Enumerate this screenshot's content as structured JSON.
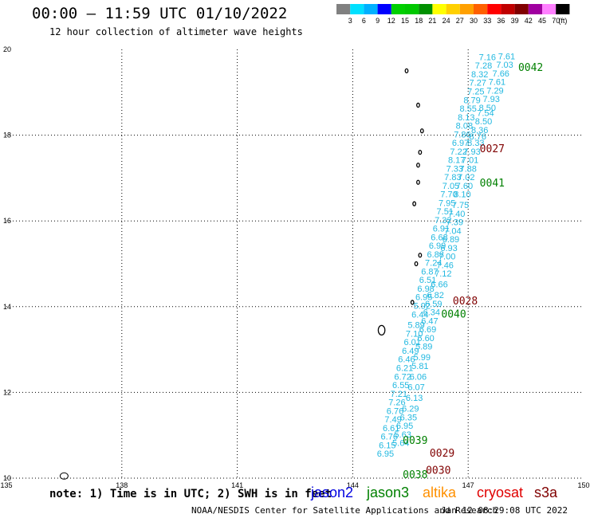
{
  "title": "00:00 – 11:59 UTC 01/10/2022",
  "subtitle": "12 hour collection of altimeter wave heights",
  "colorbar": {
    "labels": [
      "3",
      "6",
      "9",
      "12",
      "15",
      "18",
      "21",
      "24",
      "27",
      "30",
      "33",
      "36",
      "39",
      "42",
      "45",
      "70"
    ],
    "unit": "(ft)",
    "colors": [
      "#808080",
      "#00e0ff",
      "#00b0ff",
      "#0000ff",
      "#00d000",
      "#00c800",
      "#009000",
      "#ffff00",
      "#ffd000",
      "#ffa000",
      "#ff6000",
      "#ff0000",
      "#c00000",
      "#800000",
      "#a000a0",
      "#ff80ff",
      "#000000"
    ]
  },
  "footer_note": "note: 1) Time is in UTC; 2) SWH is in feet",
  "legend": [
    {
      "label": "jason2",
      "color": "#0000e0"
    },
    {
      "label": "jason3",
      "color": "#008000"
    },
    {
      "label": "altika",
      "color": "#ff9000"
    },
    {
      "label": "cryosat",
      "color": "#e00000"
    },
    {
      "label": "s3a",
      "color": "#800000"
    }
  ],
  "credit": "NOAA/NESDIS Center for Satellite Applications and Research",
  "credit_time": "Jan 12 08:29:08 UTC 2022",
  "chart_data": {
    "type": "scatter",
    "xlim": [
      135,
      150
    ],
    "ylim": [
      10,
      20
    ],
    "x_ticks": [
      "135",
      "138",
      "141",
      "144",
      "147",
      "150"
    ],
    "y_ticks": [
      "10",
      "12",
      "14",
      "16",
      "18",
      "20"
    ],
    "grid": true,
    "wave_heights": [
      {
        "lon": 147.5,
        "lat": 19.75,
        "v": "7.16"
      },
      {
        "lon": 148.0,
        "lat": 19.77,
        "v": "7.61"
      },
      {
        "lon": 147.4,
        "lat": 19.55,
        "v": "7.28"
      },
      {
        "lon": 147.95,
        "lat": 19.57,
        "v": "7.03"
      },
      {
        "lon": 147.3,
        "lat": 19.35,
        "v": "8.32"
      },
      {
        "lon": 147.85,
        "lat": 19.37,
        "v": "7.66"
      },
      {
        "lon": 147.25,
        "lat": 19.15,
        "v": "7.27"
      },
      {
        "lon": 147.75,
        "lat": 19.17,
        "v": "7.61"
      },
      {
        "lon": 147.2,
        "lat": 18.95,
        "v": "7.25"
      },
      {
        "lon": 147.7,
        "lat": 18.97,
        "v": "7.29"
      },
      {
        "lon": 147.1,
        "lat": 18.75,
        "v": "8.79"
      },
      {
        "lon": 147.6,
        "lat": 18.77,
        "v": "7.93"
      },
      {
        "lon": 147.0,
        "lat": 18.55,
        "v": "8.55"
      },
      {
        "lon": 147.5,
        "lat": 18.57,
        "v": "8.50"
      },
      {
        "lon": 146.95,
        "lat": 18.35,
        "v": "8.13"
      },
      {
        "lon": 147.45,
        "lat": 18.45,
        "v": "7.54"
      },
      {
        "lon": 146.9,
        "lat": 18.15,
        "v": "8.08"
      },
      {
        "lon": 147.4,
        "lat": 18.25,
        "v": "8.50"
      },
      {
        "lon": 146.85,
        "lat": 17.95,
        "v": "7.86"
      },
      {
        "lon": 147.3,
        "lat": 18.05,
        "v": "8.36"
      },
      {
        "lon": 146.8,
        "lat": 17.75,
        "v": "6.97"
      },
      {
        "lon": 147.25,
        "lat": 17.9,
        "v": "8.76"
      },
      {
        "lon": 146.75,
        "lat": 17.55,
        "v": "7.22"
      },
      {
        "lon": 147.2,
        "lat": 17.75,
        "v": "8.33"
      },
      {
        "lon": 146.7,
        "lat": 17.35,
        "v": "8.17"
      },
      {
        "lon": 147.1,
        "lat": 17.55,
        "v": "7.93"
      },
      {
        "lon": 146.65,
        "lat": 17.15,
        "v": "7.33"
      },
      {
        "lon": 147.05,
        "lat": 17.35,
        "v": "7.01"
      },
      {
        "lon": 146.6,
        "lat": 16.95,
        "v": "7.83"
      },
      {
        "lon": 147.0,
        "lat": 17.15,
        "v": "7.88"
      },
      {
        "lon": 146.55,
        "lat": 16.75,
        "v": "7.05"
      },
      {
        "lon": 146.95,
        "lat": 16.95,
        "v": "7.02"
      },
      {
        "lon": 146.5,
        "lat": 16.55,
        "v": "7.70"
      },
      {
        "lon": 146.9,
        "lat": 16.75,
        "v": "7.60"
      },
      {
        "lon": 146.45,
        "lat": 16.35,
        "v": "7.95"
      },
      {
        "lon": 146.85,
        "lat": 16.55,
        "v": "8.10"
      },
      {
        "lon": 146.4,
        "lat": 16.15,
        "v": "7.51"
      },
      {
        "lon": 146.8,
        "lat": 16.3,
        "v": "7.75"
      },
      {
        "lon": 146.35,
        "lat": 15.95,
        "v": "7.32"
      },
      {
        "lon": 146.7,
        "lat": 16.1,
        "v": "7.40"
      },
      {
        "lon": 146.3,
        "lat": 15.75,
        "v": "6.91"
      },
      {
        "lon": 146.65,
        "lat": 15.9,
        "v": "7.39"
      },
      {
        "lon": 146.25,
        "lat": 15.55,
        "v": "6.68"
      },
      {
        "lon": 146.6,
        "lat": 15.7,
        "v": "7.04"
      },
      {
        "lon": 146.2,
        "lat": 15.35,
        "v": "6.99"
      },
      {
        "lon": 146.55,
        "lat": 15.5,
        "v": "6.89"
      },
      {
        "lon": 146.15,
        "lat": 15.15,
        "v": "6.88"
      },
      {
        "lon": 146.5,
        "lat": 15.3,
        "v": "6.93"
      },
      {
        "lon": 146.1,
        "lat": 14.95,
        "v": "7.24"
      },
      {
        "lon": 146.45,
        "lat": 15.1,
        "v": "7.00"
      },
      {
        "lon": 146.0,
        "lat": 14.75,
        "v": "6.87"
      },
      {
        "lon": 146.4,
        "lat": 14.9,
        "v": "7.46"
      },
      {
        "lon": 145.95,
        "lat": 14.55,
        "v": "6.51"
      },
      {
        "lon": 146.35,
        "lat": 14.7,
        "v": "7.12"
      },
      {
        "lon": 145.9,
        "lat": 14.35,
        "v": "6.98"
      },
      {
        "lon": 146.25,
        "lat": 14.45,
        "v": "6.66"
      },
      {
        "lon": 145.85,
        "lat": 14.15,
        "v": "6.95"
      },
      {
        "lon": 146.15,
        "lat": 14.2,
        "v": "6.82"
      },
      {
        "lon": 145.8,
        "lat": 13.95,
        "v": "5.92"
      },
      {
        "lon": 146.1,
        "lat": 14.0,
        "v": "6.59"
      },
      {
        "lon": 145.75,
        "lat": 13.75,
        "v": "6.44"
      },
      {
        "lon": 146.05,
        "lat": 13.8,
        "v": "6.34"
      },
      {
        "lon": 145.65,
        "lat": 13.5,
        "v": "5.89"
      },
      {
        "lon": 146.0,
        "lat": 13.6,
        "v": "6.47"
      },
      {
        "lon": 145.6,
        "lat": 13.3,
        "v": "7.10"
      },
      {
        "lon": 145.95,
        "lat": 13.4,
        "v": "6.69"
      },
      {
        "lon": 145.55,
        "lat": 13.1,
        "v": "6.01"
      },
      {
        "lon": 145.9,
        "lat": 13.2,
        "v": "6.60"
      },
      {
        "lon": 145.5,
        "lat": 12.9,
        "v": "6.49"
      },
      {
        "lon": 145.85,
        "lat": 13.0,
        "v": "5.89"
      },
      {
        "lon": 145.4,
        "lat": 12.7,
        "v": "6.46"
      },
      {
        "lon": 145.8,
        "lat": 12.75,
        "v": "5.99"
      },
      {
        "lon": 145.35,
        "lat": 12.5,
        "v": "6.21"
      },
      {
        "lon": 145.75,
        "lat": 12.55,
        "v": "5.81"
      },
      {
        "lon": 145.3,
        "lat": 12.3,
        "v": "6.72"
      },
      {
        "lon": 145.7,
        "lat": 12.3,
        "v": "6.06"
      },
      {
        "lon": 145.25,
        "lat": 12.1,
        "v": "6.55"
      },
      {
        "lon": 145.65,
        "lat": 12.05,
        "v": "6.07"
      },
      {
        "lon": 145.2,
        "lat": 11.9,
        "v": "7.21"
      },
      {
        "lon": 145.6,
        "lat": 11.8,
        "v": "6.13"
      },
      {
        "lon": 145.15,
        "lat": 11.7,
        "v": "7.26"
      },
      {
        "lon": 145.5,
        "lat": 11.55,
        "v": "6.29"
      },
      {
        "lon": 145.1,
        "lat": 11.5,
        "v": "6.76"
      },
      {
        "lon": 145.45,
        "lat": 11.35,
        "v": "6.35"
      },
      {
        "lon": 145.05,
        "lat": 11.3,
        "v": "7.49"
      },
      {
        "lon": 145.35,
        "lat": 11.15,
        "v": "6.95"
      },
      {
        "lon": 145.0,
        "lat": 11.1,
        "v": "6.61"
      },
      {
        "lon": 145.3,
        "lat": 10.95,
        "v": "5.63"
      },
      {
        "lon": 144.95,
        "lat": 10.9,
        "v": "6.76"
      },
      {
        "lon": 145.25,
        "lat": 10.75,
        "v": "5.64"
      },
      {
        "lon": 144.9,
        "lat": 10.7,
        "v": "6.15"
      },
      {
        "lon": 144.85,
        "lat": 10.5,
        "v": "6.95"
      }
    ],
    "pass_labels": [
      {
        "text": "0042",
        "lon": 148.3,
        "lat": 19.5,
        "color": "#008000"
      },
      {
        "text": "0027",
        "lon": 147.3,
        "lat": 17.6,
        "color": "#800000"
      },
      {
        "text": "0041",
        "lon": 147.3,
        "lat": 16.8,
        "color": "#008000"
      },
      {
        "text": "0028",
        "lon": 146.6,
        "lat": 14.05,
        "color": "#800000"
      },
      {
        "text": "0040",
        "lon": 146.3,
        "lat": 13.75,
        "color": "#008000"
      },
      {
        "text": "0039",
        "lon": 145.3,
        "lat": 10.8,
        "color": "#008000"
      },
      {
        "text": "0029",
        "lon": 146.0,
        "lat": 10.5,
        "color": "#800000"
      },
      {
        "text": "0030",
        "lon": 145.9,
        "lat": 10.1,
        "color": "#800000"
      },
      {
        "text": "0038",
        "lon": 145.3,
        "lat": 10.0,
        "color": "#008000"
      }
    ]
  }
}
